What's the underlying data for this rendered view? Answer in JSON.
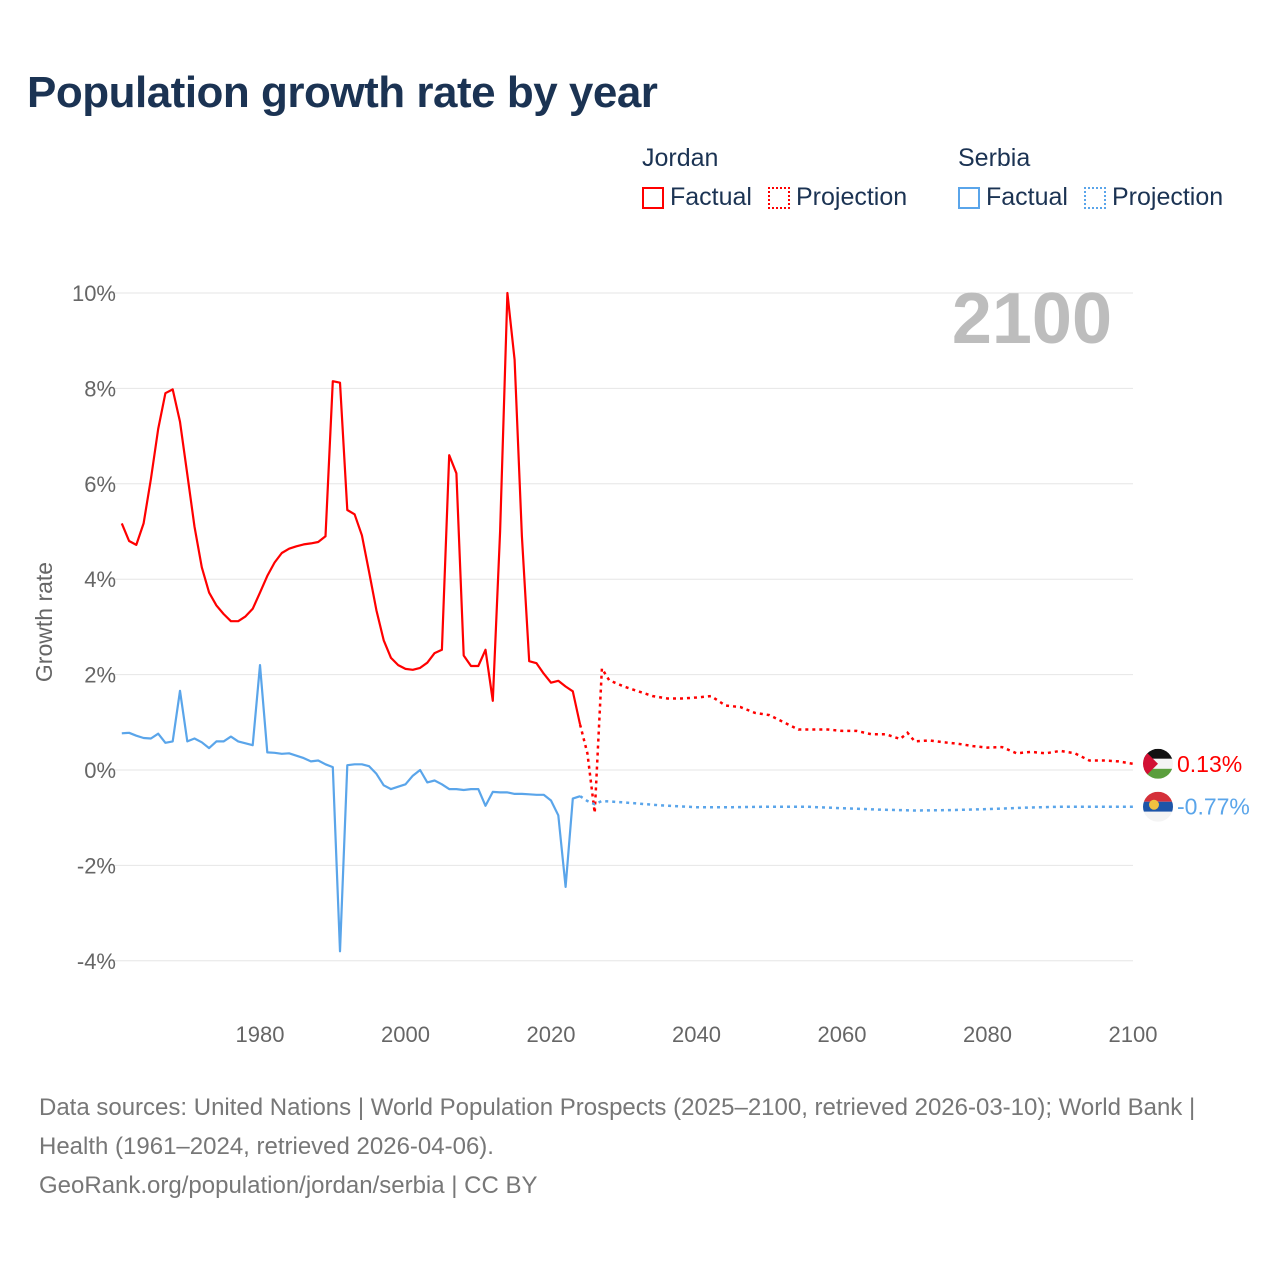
{
  "title": "Population growth rate by year",
  "legend": {
    "groups": [
      {
        "name": "Jordan",
        "factual": "Factual",
        "projection": "Projection",
        "color": "#ff0000"
      },
      {
        "name": "Serbia",
        "factual": "Factual",
        "projection": "Projection",
        "color": "#5aa5ea"
      }
    ]
  },
  "footer": {
    "sources": "Data sources: United Nations | World Population Prospects (2025–2100, retrieved 2026-03-10); World Bank | Health (1961–2024, retrieved 2026-04-06).",
    "credit": "GeoRank.org/population/jordan/serbia | CC BY"
  },
  "chart_data": {
    "type": "line",
    "title": "Population growth rate by year",
    "ylabel": "Growth rate",
    "xlabel": "",
    "xlim": [
      1961,
      2100
    ],
    "ylim": [
      -5,
      10
    ],
    "year_label": "2100",
    "xticks": [
      {
        "v": 1980,
        "label": "1980"
      },
      {
        "v": 2000,
        "label": "2000"
      },
      {
        "v": 2020,
        "label": "2020"
      },
      {
        "v": 2040,
        "label": "2040"
      },
      {
        "v": 2060,
        "label": "2060"
      },
      {
        "v": 2080,
        "label": "2080"
      },
      {
        "v": 2100,
        "label": "2100"
      }
    ],
    "yticks": [
      {
        "v": 10,
        "label": "10%"
      },
      {
        "v": 8,
        "label": "8%"
      },
      {
        "v": 6,
        "label": "6%"
      },
      {
        "v": 4,
        "label": "4%"
      },
      {
        "v": 2,
        "label": "2%"
      },
      {
        "v": 0,
        "label": "0%"
      },
      {
        "v": -2,
        "label": "-2%"
      },
      {
        "v": -4,
        "label": "-4%"
      }
    ],
    "grid": true,
    "series": [
      {
        "name": "Jordan",
        "color": "#ff0000",
        "end_label": "0.13%",
        "factual": {
          "x": [
            1961,
            1962,
            1963,
            1964,
            1965,
            1966,
            1967,
            1968,
            1969,
            1970,
            1971,
            1972,
            1973,
            1974,
            1975,
            1976,
            1977,
            1978,
            1979,
            1980,
            1981,
            1982,
            1983,
            1984,
            1985,
            1986,
            1987,
            1988,
            1989,
            1990,
            1991,
            1992,
            1993,
            1994,
            1995,
            1996,
            1997,
            1998,
            1999,
            2000,
            2001,
            2002,
            2003,
            2004,
            2005,
            2006,
            2007,
            2008,
            2009,
            2010,
            2011,
            2012,
            2013,
            2014,
            2015,
            2016,
            2017,
            2018,
            2019,
            2020,
            2021,
            2022,
            2023,
            2024
          ],
          "y": [
            5.17,
            4.8,
            4.72,
            5.17,
            6.1,
            7.15,
            7.9,
            7.98,
            7.3,
            6.2,
            5.1,
            4.25,
            3.72,
            3.45,
            3.27,
            3.12,
            3.12,
            3.22,
            3.38,
            3.72,
            4.07,
            4.35,
            4.55,
            4.64,
            4.69,
            4.73,
            4.75,
            4.78,
            4.9,
            8.15,
            8.12,
            5.45,
            5.36,
            4.92,
            4.15,
            3.35,
            2.72,
            2.35,
            2.2,
            2.12,
            2.1,
            2.14,
            2.25,
            2.45,
            2.52,
            6.6,
            6.22,
            2.4,
            2.18,
            2.18,
            2.52,
            1.45,
            5.0,
            10.0,
            8.6,
            4.9,
            2.28,
            2.24,
            2.02,
            1.83,
            1.87,
            1.75,
            1.65,
            0.95
          ]
        },
        "projection": {
          "x": [
            2024,
            2025,
            2026,
            2027,
            2028,
            2030,
            2032,
            2034,
            2036,
            2038,
            2040,
            2042,
            2044,
            2046,
            2048,
            2050,
            2052,
            2054,
            2056,
            2058,
            2060,
            2062,
            2064,
            2066,
            2068,
            2069,
            2070,
            2072,
            2074,
            2076,
            2078,
            2080,
            2082,
            2084,
            2086,
            2088,
            2090,
            2092,
            2094,
            2096,
            2098,
            2100
          ],
          "y": [
            0.95,
            0.35,
            -0.9,
            2.13,
            1.88,
            1.75,
            1.65,
            1.55,
            1.5,
            1.5,
            1.52,
            1.55,
            1.35,
            1.32,
            1.2,
            1.15,
            1.0,
            0.85,
            0.85,
            0.85,
            0.82,
            0.82,
            0.75,
            0.75,
            0.65,
            0.78,
            0.6,
            0.62,
            0.58,
            0.55,
            0.5,
            0.47,
            0.48,
            0.35,
            0.38,
            0.35,
            0.4,
            0.35,
            0.2,
            0.2,
            0.18,
            0.13
          ]
        }
      },
      {
        "name": "Serbia",
        "color": "#5aa5ea",
        "end_label": "-0.77%",
        "factual": {
          "x": [
            1961,
            1962,
            1963,
            1964,
            1965,
            1966,
            1967,
            1968,
            1969,
            1970,
            1971,
            1972,
            1973,
            1974,
            1975,
            1976,
            1977,
            1978,
            1979,
            1980,
            1981,
            1982,
            1983,
            1984,
            1985,
            1986,
            1987,
            1988,
            1989,
            1990,
            1991,
            1992,
            1993,
            1994,
            1995,
            1996,
            1997,
            1998,
            1999,
            2000,
            2001,
            2002,
            2003,
            2004,
            2005,
            2006,
            2007,
            2008,
            2009,
            2010,
            2011,
            2012,
            2013,
            2014,
            2015,
            2016,
            2017,
            2018,
            2019,
            2020,
            2021,
            2022,
            2023,
            2024
          ],
          "y": [
            0.77,
            0.78,
            0.72,
            0.67,
            0.66,
            0.76,
            0.57,
            0.6,
            1.66,
            0.6,
            0.66,
            0.58,
            0.46,
            0.6,
            0.6,
            0.7,
            0.6,
            0.56,
            0.52,
            2.2,
            0.37,
            0.36,
            0.34,
            0.35,
            0.3,
            0.25,
            0.18,
            0.2,
            0.12,
            0.06,
            -3.8,
            0.1,
            0.12,
            0.12,
            0.08,
            -0.08,
            -0.32,
            -0.4,
            -0.35,
            -0.3,
            -0.12,
            0.0,
            -0.26,
            -0.22,
            -0.3,
            -0.4,
            -0.4,
            -0.42,
            -0.4,
            -0.4,
            -0.75,
            -0.46,
            -0.47,
            -0.47,
            -0.5,
            -0.5,
            -0.51,
            -0.52,
            -0.52,
            -0.64,
            -0.95,
            -2.45,
            -0.6,
            -0.55
          ]
        },
        "projection": {
          "x": [
            2024,
            2025,
            2026,
            2027,
            2030,
            2035,
            2040,
            2045,
            2050,
            2055,
            2060,
            2065,
            2070,
            2075,
            2080,
            2085,
            2090,
            2095,
            2100
          ],
          "y": [
            -0.55,
            -0.65,
            -0.72,
            -0.65,
            -0.68,
            -0.74,
            -0.78,
            -0.78,
            -0.77,
            -0.77,
            -0.8,
            -0.83,
            -0.85,
            -0.84,
            -0.82,
            -0.79,
            -0.77,
            -0.77,
            -0.77
          ]
        }
      }
    ]
  }
}
